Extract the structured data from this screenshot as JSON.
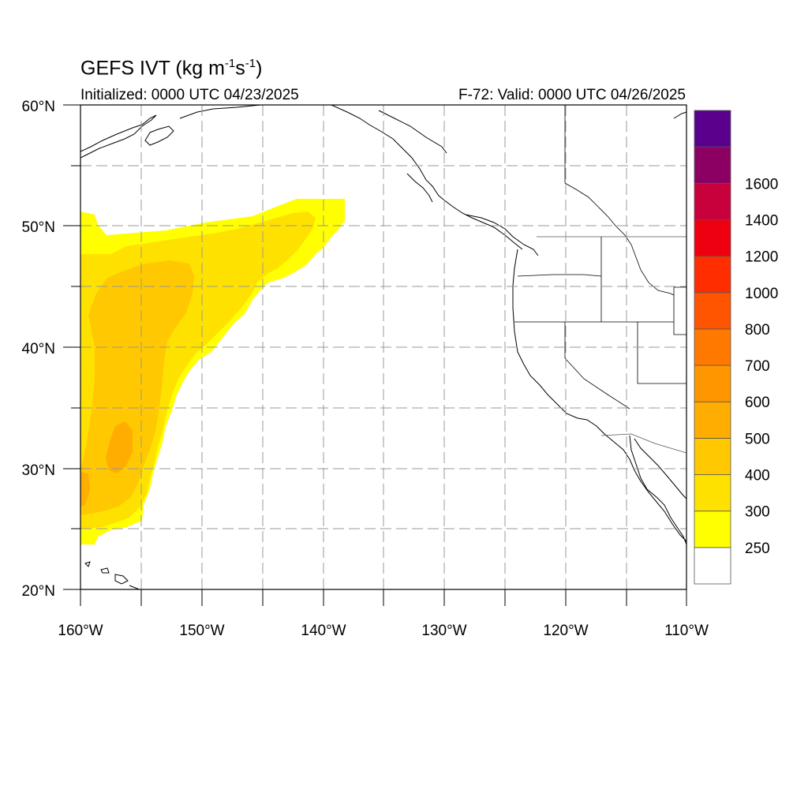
{
  "header": {
    "title_main": "GEFS IVT (kg m",
    "title_exp1": "-1",
    "title_mid": "s",
    "title_exp2": "-1",
    "title_end": ")",
    "initialized": "Initialized: 0000 UTC 04/23/2025",
    "valid": "F-72: Valid: 0000 UTC 04/26/2025"
  },
  "map": {
    "lat_range": [
      20,
      60
    ],
    "lon_range": [
      -160,
      -110
    ],
    "lat_labels": [
      "60°N",
      "50°N",
      "40°N",
      "30°N",
      "20°N"
    ],
    "lon_labels": [
      "160°W",
      "150°W",
      "140°W",
      "130°W",
      "120°W",
      "110°W"
    ],
    "grid": "dashed every 5°"
  },
  "colorbar": {
    "labels": [
      "250",
      "300",
      "400",
      "500",
      "600",
      "700",
      "800",
      "1000",
      "1200",
      "1400",
      "1600"
    ],
    "colors": [
      "#ffffff",
      "#ffff00",
      "#ffe100",
      "#ffc800",
      "#ffad00",
      "#ff9600",
      "#ff7800",
      "#ff5500",
      "#ff2d00",
      "#ee0011",
      "#c8003c",
      "#8c0064",
      "#5a008c"
    ]
  },
  "ivt_field": {
    "description_colors": {
      "250-300": "#ffff00",
      "300-400": "#ffe100",
      "400-500": "#ffc800",
      "500-600": "#ffad00"
    }
  }
}
